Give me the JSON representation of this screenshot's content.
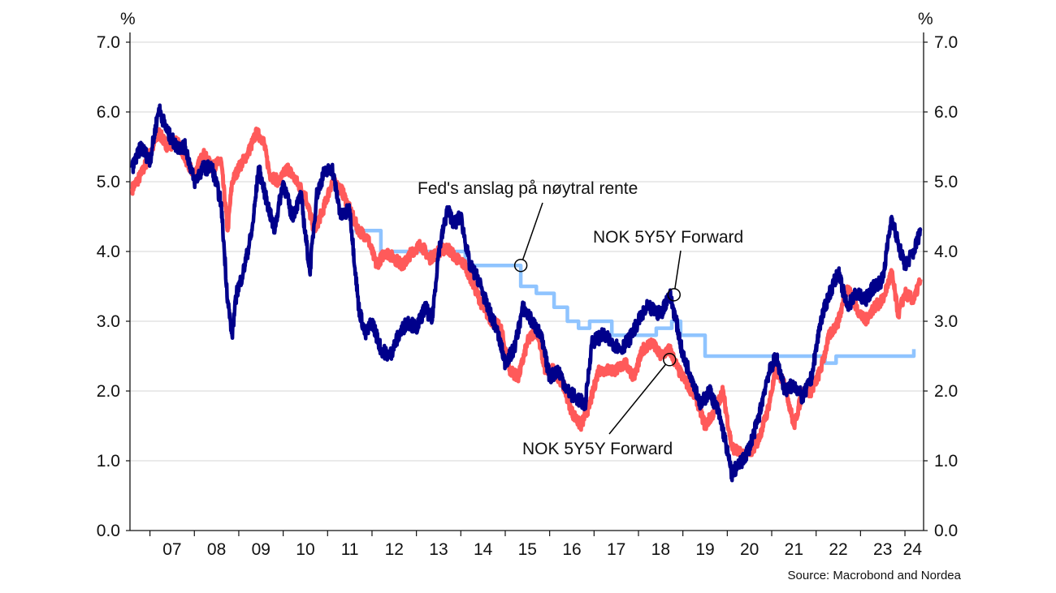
{
  "chart_data": {
    "type": "line",
    "y_unit_left": "%",
    "y_unit_right": "%",
    "ylim": [
      0,
      7
    ],
    "yticks": [
      "0.0",
      "1.0",
      "2.0",
      "3.0",
      "4.0",
      "5.0",
      "6.0",
      "7.0"
    ],
    "xticks": [
      "07",
      "08",
      "09",
      "10",
      "11",
      "12",
      "13",
      "14",
      "15",
      "16",
      "17",
      "18",
      "19",
      "20",
      "21",
      "22",
      "23",
      "24"
    ],
    "xlim": [
      2006.55,
      2024.42
    ],
    "grid": true,
    "source": "Source: Macrobond and Nordea",
    "colors": {
      "us": "#00008b",
      "nok": "#ff5a5a",
      "fed": "#8fc4ff"
    },
    "annotations": [
      {
        "text": "Fed's anslag på nøytral rente",
        "target_x": 2015.35,
        "target_y": 3.8
      },
      {
        "text": "NOK 5Y5Y Forward",
        "target_x": 2018.8,
        "target_y": 3.38
      },
      {
        "text": "NOK 5Y5Y Forward",
        "target_x": 2018.7,
        "target_y": 2.45
      }
    ],
    "series": [
      {
        "key": "us",
        "x": [
          2006.6,
          2006.8,
          2007.0,
          2007.2,
          2007.4,
          2007.6,
          2007.8,
          2008.0,
          2008.2,
          2008.4,
          2008.6,
          2008.75,
          2008.85,
          2008.95,
          2009.1,
          2009.3,
          2009.45,
          2009.6,
          2009.8,
          2010.0,
          2010.2,
          2010.4,
          2010.6,
          2010.75,
          2010.9,
          2011.1,
          2011.3,
          2011.5,
          2011.7,
          2011.85,
          2012.0,
          2012.2,
          2012.4,
          2012.6,
          2012.8,
          2013.0,
          2013.2,
          2013.35,
          2013.5,
          2013.7,
          2013.85,
          2014.0,
          2014.2,
          2014.4,
          2014.6,
          2014.8,
          2015.0,
          2015.2,
          2015.4,
          2015.6,
          2015.8,
          2016.0,
          2016.2,
          2016.4,
          2016.6,
          2016.8,
          2016.95,
          2017.2,
          2017.4,
          2017.6,
          2017.8,
          2018.0,
          2018.2,
          2018.5,
          2018.7,
          2018.85,
          2019.0,
          2019.2,
          2019.4,
          2019.6,
          2019.8,
          2019.95,
          2020.1,
          2020.2,
          2020.35,
          2020.5,
          2020.7,
          2020.9,
          2021.1,
          2021.3,
          2021.5,
          2021.7,
          2021.9,
          2022.1,
          2022.3,
          2022.5,
          2022.7,
          2022.9,
          2023.1,
          2023.3,
          2023.5,
          2023.7,
          2023.85,
          2024.0,
          2024.2,
          2024.35
        ],
        "values": [
          5.2,
          5.5,
          5.3,
          6.05,
          5.7,
          5.5,
          5.5,
          5.0,
          5.2,
          5.2,
          4.7,
          3.3,
          2.8,
          3.4,
          3.7,
          4.3,
          5.2,
          4.8,
          4.3,
          5.0,
          4.5,
          4.8,
          3.7,
          4.8,
          5.1,
          5.2,
          4.5,
          4.6,
          3.2,
          2.8,
          3.0,
          2.6,
          2.5,
          2.8,
          3.0,
          2.9,
          3.2,
          3.0,
          4.0,
          4.6,
          4.4,
          4.5,
          3.8,
          3.6,
          3.2,
          2.9,
          2.4,
          2.6,
          3.2,
          3.0,
          2.8,
          2.2,
          2.3,
          2.0,
          1.9,
          1.8,
          2.7,
          2.8,
          2.7,
          2.6,
          2.75,
          3.0,
          3.2,
          3.1,
          3.4,
          3.0,
          2.5,
          2.2,
          1.8,
          2.0,
          1.7,
          1.3,
          0.8,
          0.9,
          1.0,
          1.2,
          1.6,
          2.2,
          2.5,
          2.0,
          2.1,
          1.9,
          2.2,
          3.0,
          3.4,
          3.7,
          3.2,
          3.4,
          3.3,
          3.5,
          3.6,
          4.5,
          4.1,
          3.8,
          4.0,
          4.3
        ]
      },
      {
        "key": "nok",
        "x": [
          2006.6,
          2006.8,
          2007.0,
          2007.2,
          2007.4,
          2007.6,
          2007.8,
          2008.0,
          2008.2,
          2008.4,
          2008.6,
          2008.75,
          2008.85,
          2009.0,
          2009.2,
          2009.4,
          2009.55,
          2009.7,
          2009.9,
          2010.1,
          2010.3,
          2010.5,
          2010.7,
          2010.9,
          2011.1,
          2011.3,
          2011.5,
          2011.7,
          2011.9,
          2012.1,
          2012.3,
          2012.5,
          2012.7,
          2012.9,
          2013.1,
          2013.3,
          2013.5,
          2013.7,
          2013.9,
          2014.1,
          2014.3,
          2014.5,
          2014.7,
          2014.9,
          2015.1,
          2015.3,
          2015.5,
          2015.7,
          2015.9,
          2016.1,
          2016.3,
          2016.5,
          2016.7,
          2016.9,
          2017.1,
          2017.3,
          2017.5,
          2017.7,
          2017.9,
          2018.1,
          2018.3,
          2018.5,
          2018.7,
          2018.9,
          2019.1,
          2019.3,
          2019.5,
          2019.7,
          2019.9,
          2020.1,
          2020.3,
          2020.5,
          2020.7,
          2020.9,
          2021.1,
          2021.3,
          2021.5,
          2021.7,
          2021.9,
          2022.1,
          2022.3,
          2022.5,
          2022.7,
          2022.9,
          2023.1,
          2023.3,
          2023.5,
          2023.7,
          2023.85,
          2024.0,
          2024.2,
          2024.35
        ],
        "values": [
          4.9,
          5.1,
          5.4,
          5.7,
          5.5,
          5.6,
          5.3,
          5.1,
          5.4,
          5.2,
          5.3,
          4.3,
          5.0,
          5.2,
          5.4,
          5.7,
          5.6,
          5.1,
          5.0,
          5.2,
          5.0,
          4.8,
          4.3,
          4.6,
          5.0,
          4.9,
          4.6,
          4.3,
          4.2,
          3.8,
          4.0,
          3.9,
          3.8,
          4.0,
          4.1,
          3.9,
          4.0,
          4.05,
          3.9,
          3.8,
          3.5,
          3.2,
          3.0,
          2.9,
          2.3,
          2.2,
          2.7,
          2.9,
          2.3,
          2.3,
          2.1,
          1.7,
          1.5,
          1.8,
          2.3,
          2.3,
          2.3,
          2.4,
          2.2,
          2.6,
          2.7,
          2.5,
          2.6,
          2.3,
          2.1,
          1.9,
          1.5,
          1.7,
          2.0,
          1.2,
          1.1,
          1.1,
          1.3,
          1.7,
          2.3,
          2.1,
          1.5,
          2.0,
          2.0,
          2.3,
          2.8,
          3.0,
          3.5,
          3.2,
          3.0,
          3.2,
          3.3,
          3.7,
          3.1,
          3.4,
          3.3,
          3.6
        ]
      },
      {
        "key": "fed",
        "x": [
          2011.6,
          2012.2,
          2012.2,
          2013.95,
          2013.95,
          2014.1,
          2014.1,
          2015.35,
          2015.35,
          2015.7,
          2015.7,
          2016.1,
          2016.1,
          2016.4,
          2016.4,
          2016.65,
          2016.65,
          2016.9,
          2016.9,
          2017.4,
          2017.4,
          2018.4,
          2018.4,
          2018.75,
          2018.75,
          2018.95,
          2018.95,
          2019.5,
          2019.5,
          2022.2,
          2022.2,
          2022.45,
          2022.45,
          2024.2,
          2024.2
        ],
        "values": [
          4.3,
          4.3,
          4.0,
          4.0,
          4.0,
          4.0,
          3.8,
          3.8,
          3.5,
          3.5,
          3.4,
          3.4,
          3.2,
          3.2,
          3.0,
          3.0,
          2.9,
          2.9,
          3.0,
          3.0,
          2.8,
          2.8,
          2.9,
          2.9,
          3.0,
          3.0,
          2.8,
          2.8,
          2.5,
          2.5,
          2.4,
          2.4,
          2.5,
          2.5,
          2.6
        ]
      }
    ]
  }
}
